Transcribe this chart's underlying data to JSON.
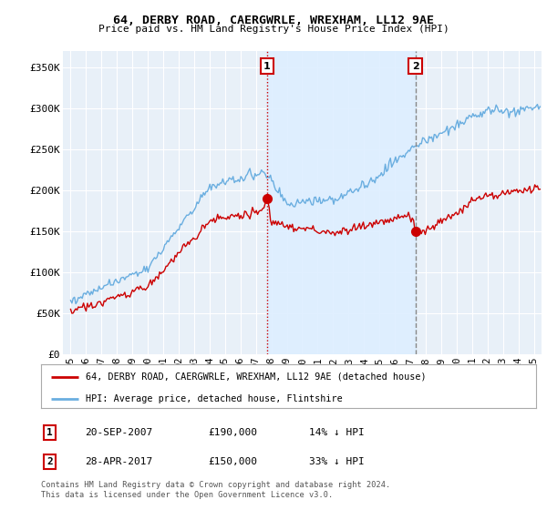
{
  "title": "64, DERBY ROAD, CAERGWRLE, WREXHAM, LL12 9AE",
  "subtitle": "Price paid vs. HM Land Registry's House Price Index (HPI)",
  "yticks": [
    0,
    50000,
    100000,
    150000,
    200000,
    250000,
    300000,
    350000
  ],
  "ytick_labels": [
    "£0",
    "£50K",
    "£100K",
    "£150K",
    "£200K",
    "£250K",
    "£300K",
    "£350K"
  ],
  "ylim": [
    0,
    370000
  ],
  "xlim_start": 1994.5,
  "xlim_end": 2025.5,
  "hpi_color": "#6aaee0",
  "price_color": "#cc0000",
  "shade_color": "#ddeeff",
  "marker1_date": 2007.72,
  "marker1_price": 190000,
  "marker1_label": "1",
  "marker1_line_color": "#cc0000",
  "marker1_line_style": "dotted",
  "marker2_date": 2017.33,
  "marker2_price": 150000,
  "marker2_label": "2",
  "marker2_line_color": "#888888",
  "marker2_line_style": "dashed",
  "legend_entry1": "64, DERBY ROAD, CAERGWRLE, WREXHAM, LL12 9AE (detached house)",
  "legend_entry2": "HPI: Average price, detached house, Flintshire",
  "annotation1_num": "1",
  "annotation1_date": "20-SEP-2007",
  "annotation1_price": "£190,000",
  "annotation1_change": "14% ↓ HPI",
  "annotation2_num": "2",
  "annotation2_date": "28-APR-2017",
  "annotation2_price": "£150,000",
  "annotation2_change": "33% ↓ HPI",
  "footer": "Contains HM Land Registry data © Crown copyright and database right 2024.\nThis data is licensed under the Open Government Licence v3.0.",
  "background_color": "#ffffff",
  "plot_bg_color": "#e8f0f8",
  "grid_color": "#ffffff",
  "xtick_years": [
    1995,
    1996,
    1997,
    1998,
    1999,
    2000,
    2001,
    2002,
    2003,
    2004,
    2005,
    2006,
    2007,
    2008,
    2009,
    2010,
    2011,
    2012,
    2013,
    2014,
    2015,
    2016,
    2017,
    2018,
    2019,
    2020,
    2021,
    2022,
    2023,
    2024,
    2025
  ]
}
